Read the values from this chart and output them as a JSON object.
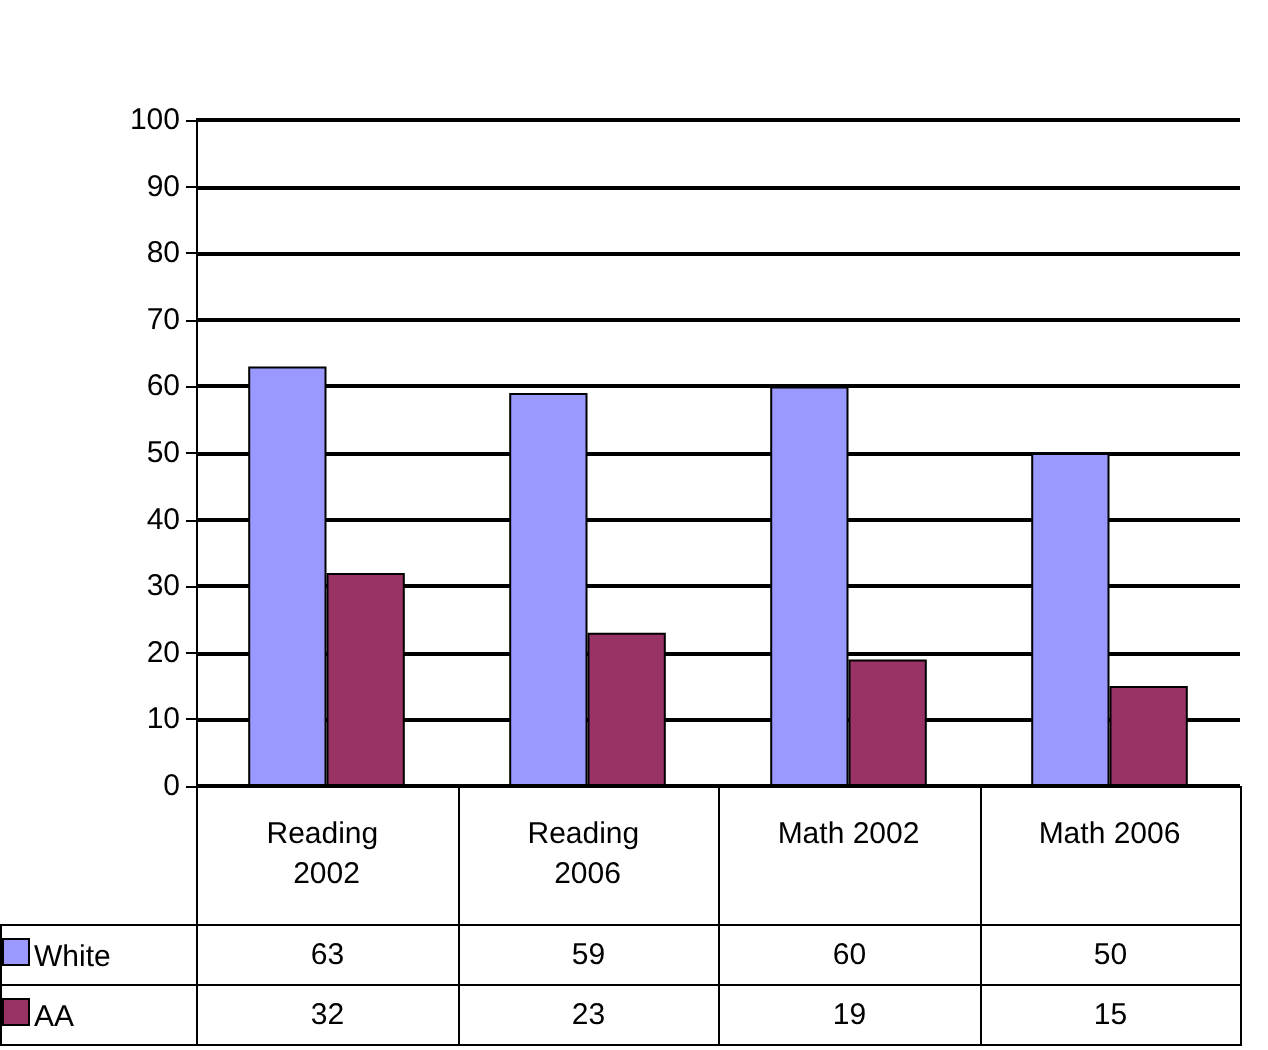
{
  "chart_data": {
    "type": "bar",
    "categories": [
      "Reading 2002",
      "Reading 2006",
      "Math 2002",
      "Math 2006"
    ],
    "series": [
      {
        "name": "White",
        "color": "#9999ff",
        "values": [
          63,
          59,
          60,
          50
        ]
      },
      {
        "name": "AA",
        "color": "#993366",
        "values": [
          32,
          23,
          19,
          15
        ]
      }
    ],
    "ylim": [
      0,
      100
    ],
    "yticks": [
      0,
      10,
      20,
      30,
      40,
      50,
      60,
      70,
      80,
      90,
      100
    ],
    "grid": "y",
    "legend": "bottom",
    "data_labels": true
  }
}
